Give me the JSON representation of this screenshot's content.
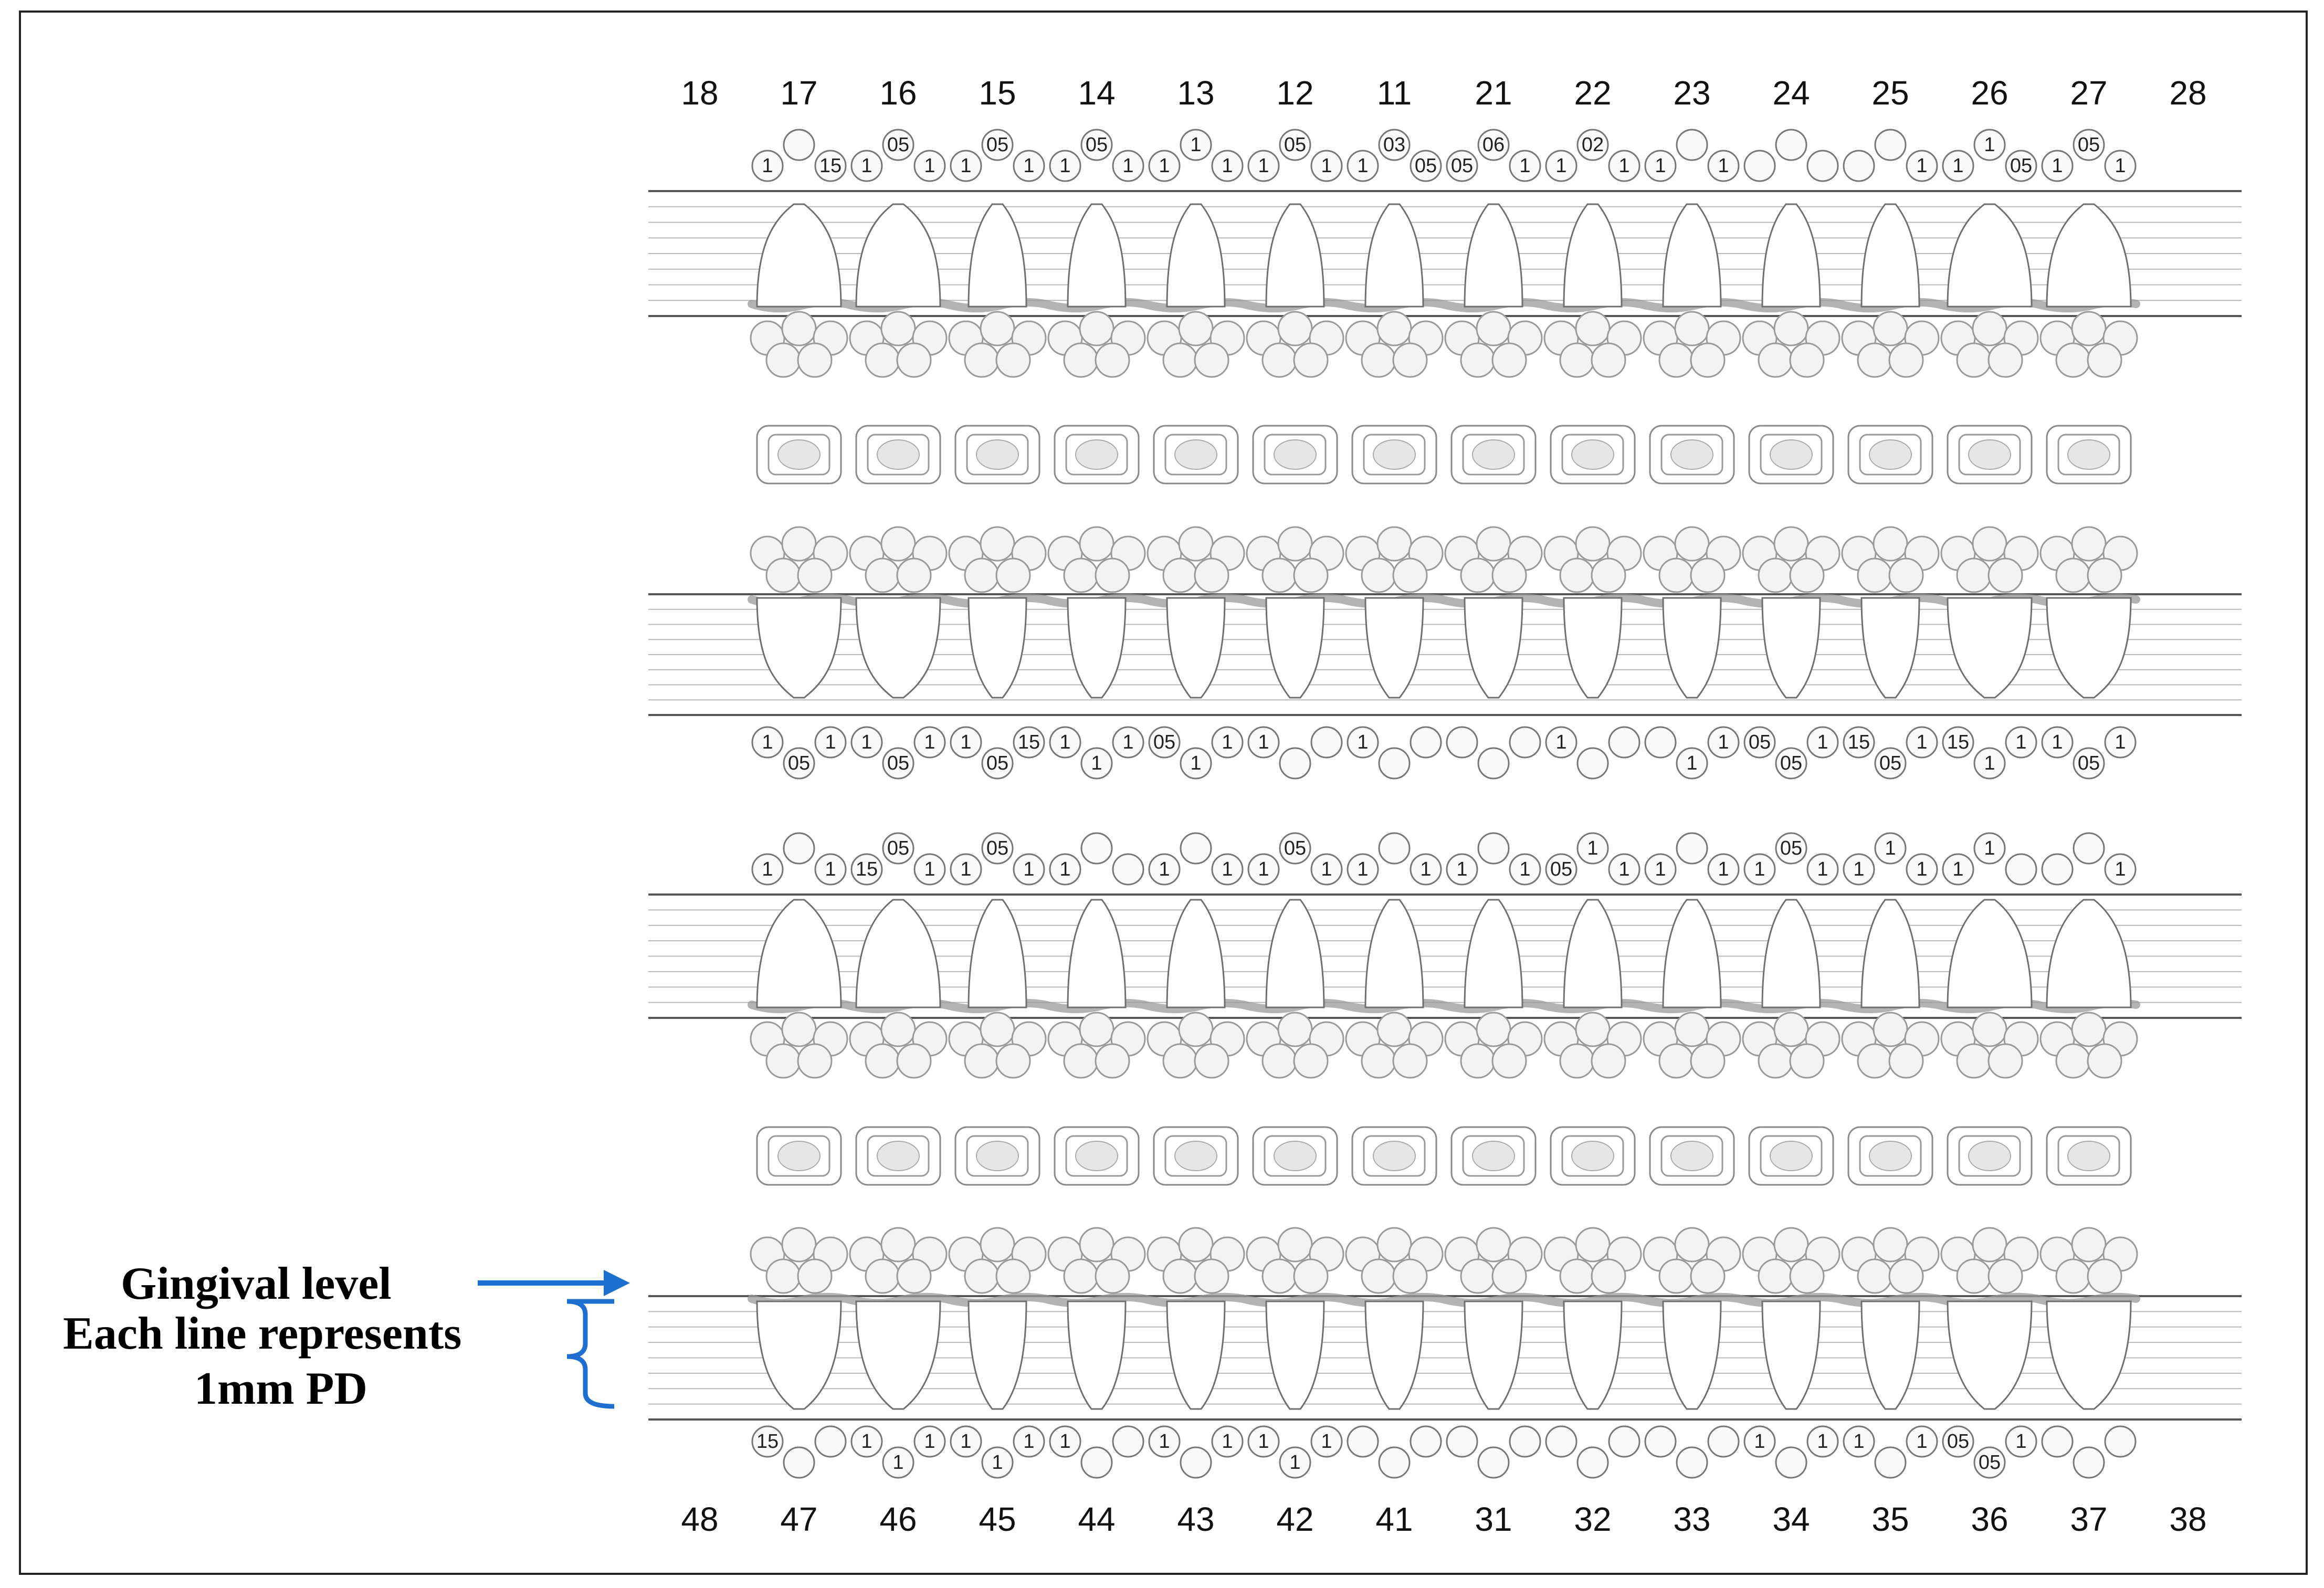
{
  "annotations": {
    "gingival_level": "Gingival level",
    "each_line_line1": "Each line represents",
    "each_line_line2": "1mm PD"
  },
  "colors": {
    "ink": "#111111",
    "annotation_arrow": "#1f6fd1",
    "gum": "#9a9a9a",
    "tooth_outline": "#6f6f6f",
    "circle": "#9a9a9a"
  },
  "upper_teeth": [
    "18",
    "17",
    "16",
    "15",
    "14",
    "13",
    "12",
    "11",
    "21",
    "22",
    "23",
    "24",
    "25",
    "26",
    "27",
    "28"
  ],
  "lower_teeth": [
    "48",
    "47",
    "46",
    "45",
    "44",
    "43",
    "42",
    "41",
    "31",
    "32",
    "33",
    "34",
    "35",
    "36",
    "37",
    "38"
  ],
  "upper_buccal_values": [
    [],
    [
      "1",
      "",
      "15"
    ],
    [
      "1",
      "05",
      "1"
    ],
    [
      "1",
      "05",
      "1"
    ],
    [
      "1",
      "05",
      "1"
    ],
    [
      "1",
      "1",
      "1"
    ],
    [
      "1",
      "05",
      "1"
    ],
    [
      "1",
      "03",
      "05"
    ],
    [
      "05",
      "06",
      "1"
    ],
    [
      "1",
      "02",
      "1"
    ],
    [
      "1",
      "",
      "1"
    ],
    [
      "",
      "",
      ""
    ],
    [
      "",
      "",
      "1"
    ],
    [
      "1",
      "1",
      "05"
    ],
    [
      "1",
      "05",
      "1"
    ],
    []
  ],
  "upper_palatal_values": [
    [],
    [
      "1",
      "05",
      "1"
    ],
    [
      "1",
      "05",
      "1"
    ],
    [
      "1",
      "05",
      "15"
    ],
    [
      "1",
      "1",
      "1"
    ],
    [
      "05",
      "1",
      "1"
    ],
    [
      "1",
      "",
      ""
    ],
    [
      "1",
      "",
      ""
    ],
    [
      "",
      "",
      ""
    ],
    [
      "1",
      "",
      ""
    ],
    [
      "",
      "1",
      "1"
    ],
    [
      "05",
      "05",
      "1"
    ],
    [
      "15",
      "05",
      "1"
    ],
    [
      "15",
      "1",
      "1"
    ],
    [
      "1",
      "05",
      "1"
    ],
    []
  ],
  "lower_lingual_values": [
    [],
    [
      "1",
      "",
      "1"
    ],
    [
      "15",
      "05",
      "1"
    ],
    [
      "1",
      "05",
      "1"
    ],
    [
      "1",
      "",
      ""
    ],
    [
      "1",
      "",
      "1"
    ],
    [
      "1",
      "05",
      "1"
    ],
    [
      "1",
      "",
      "1"
    ],
    [
      "1",
      "",
      "1"
    ],
    [
      "05",
      "1",
      "1"
    ],
    [
      "1",
      "",
      "1"
    ],
    [
      "1",
      "05",
      "1"
    ],
    [
      "1",
      "1",
      "1"
    ],
    [
      "1",
      "1",
      ""
    ],
    [
      "",
      "",
      "1"
    ],
    []
  ],
  "lower_buccal_values": [
    [],
    [
      "15",
      "",
      ""
    ],
    [
      "1",
      "1",
      "1"
    ],
    [
      "1",
      "1",
      "1"
    ],
    [
      "1",
      "",
      ""
    ],
    [
      "1",
      "",
      "1"
    ],
    [
      "1",
      "1",
      "1"
    ],
    [
      "",
      "",
      ""
    ],
    [
      "",
      "",
      ""
    ],
    [
      "",
      "",
      ""
    ],
    [
      "",
      "",
      ""
    ],
    [
      "1",
      "",
      "1"
    ],
    [
      "1",
      "",
      "1"
    ],
    [
      "05",
      "05",
      "1"
    ],
    [
      "",
      "",
      ""
    ],
    []
  ]
}
